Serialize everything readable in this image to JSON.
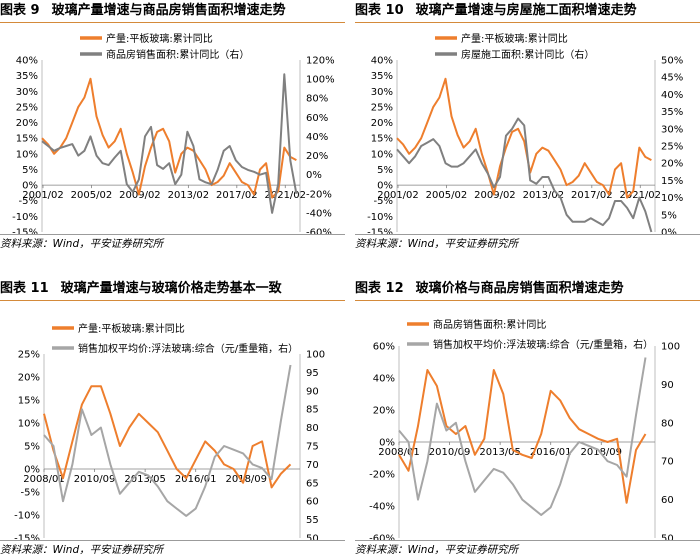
{
  "panels": [
    {
      "number": "图表 9",
      "title": "玻璃产量增速与商品房销售面积增速走势",
      "source": "资料来源：Wind，平安证券研究所"
    },
    {
      "number": "图表 10",
      "title": "玻璃产量增速与房屋施工面积增速走势",
      "source": "资料来源：Wind，平安证券研究所"
    },
    {
      "number": "图表 11",
      "title": "玻璃产量增速与玻璃价格走势基本一致",
      "source": "资料来源：Wind，平安证券研究所"
    },
    {
      "number": "图表 12",
      "title": "玻璃价格与商品房销售面积增速走势",
      "source": "资料来源：Wind，平安证券研究所"
    }
  ],
  "colors": {
    "orange": "#ee7e2d",
    "gray": "#808080",
    "rule": "#d48a3a"
  },
  "chart_data": [
    {
      "type": "line",
      "x_ticks": [
        "2001/02",
        "2005/02",
        "2009/02",
        "2013/02",
        "2017/02",
        "2021/02"
      ],
      "x_range": [
        2001.0,
        2022.3
      ],
      "left_axis": {
        "ticks": [
          "40%",
          "35%",
          "30%",
          "25%",
          "20%",
          "15%",
          "10%",
          "5%",
          "0%",
          "-5%",
          "-10%",
          "-15%"
        ],
        "ylim": [
          -15,
          40
        ]
      },
      "right_axis": {
        "ticks": [
          "120%",
          "100%",
          "80%",
          "60%",
          "40%",
          "20%",
          "0%",
          "-20%",
          "-40%",
          "-60%"
        ],
        "ylim": [
          -60,
          120
        ]
      },
      "series": [
        {
          "name": "产量:平板玻璃:累计同比",
          "axis": "left",
          "color": "#ee7e2d",
          "x": [
            2001.0,
            2001.5,
            2002.0,
            2002.5,
            2003.0,
            2003.5,
            2004.0,
            2004.5,
            2005.0,
            2005.5,
            2006.0,
            2006.5,
            2007.0,
            2007.5,
            2008.0,
            2008.5,
            2009.0,
            2009.5,
            2010.0,
            2010.5,
            2011.0,
            2011.5,
            2012.0,
            2012.5,
            2013.0,
            2013.5,
            2014.0,
            2014.5,
            2015.0,
            2015.5,
            2016.0,
            2016.5,
            2017.0,
            2017.5,
            2018.0,
            2018.5,
            2019.0,
            2019.5,
            2020.0,
            2020.5,
            2021.0,
            2021.5,
            2022.0
          ],
          "y": [
            15,
            13,
            10,
            12,
            15,
            20,
            25,
            28,
            34,
            22,
            16,
            12,
            14,
            18,
            10,
            4,
            -3,
            6,
            12,
            17,
            18,
            14,
            4,
            10,
            12,
            11,
            8,
            5,
            0,
            1,
            3,
            7,
            4,
            1,
            0,
            -3,
            5,
            7,
            -4,
            -2,
            12,
            9,
            8
          ]
        },
        {
          "name": "商品房销售面积:累计同比（右）",
          "axis": "right",
          "color": "#808080",
          "x": [
            2001.0,
            2001.5,
            2002.0,
            2002.5,
            2003.0,
            2003.5,
            2004.0,
            2004.5,
            2005.0,
            2005.5,
            2006.0,
            2006.5,
            2007.0,
            2007.5,
            2008.0,
            2008.5,
            2009.0,
            2009.5,
            2010.0,
            2010.5,
            2011.0,
            2011.5,
            2012.0,
            2012.5,
            2013.0,
            2013.5,
            2014.0,
            2014.5,
            2015.0,
            2015.5,
            2016.0,
            2016.5,
            2017.0,
            2017.5,
            2018.0,
            2018.5,
            2019.0,
            2019.5,
            2020.0,
            2020.5,
            2021.0,
            2021.5,
            2022.0
          ],
          "y": [
            35,
            30,
            25,
            28,
            30,
            32,
            20,
            25,
            40,
            20,
            12,
            10,
            18,
            25,
            -10,
            -18,
            -5,
            40,
            50,
            10,
            6,
            12,
            -10,
            0,
            45,
            30,
            -5,
            -8,
            -10,
            5,
            25,
            30,
            15,
            8,
            5,
            3,
            0,
            2,
            -40,
            -10,
            105,
            15,
            -20
          ]
        }
      ]
    },
    {
      "type": "line",
      "x_ticks": [
        "2001/02",
        "2005/02",
        "2009/02",
        "2013/02",
        "2017/02",
        "2021/02"
      ],
      "x_range": [
        2001.0,
        2022.3
      ],
      "left_axis": {
        "ticks": [
          "40%",
          "35%",
          "30%",
          "25%",
          "20%",
          "15%",
          "10%",
          "5%",
          "0%",
          "-5%",
          "-10%",
          "-15%"
        ],
        "ylim": [
          -15,
          40
        ]
      },
      "right_axis": {
        "ticks": [
          "50%",
          "45%",
          "40%",
          "35%",
          "30%",
          "25%",
          "20%",
          "15%",
          "10%",
          "5%",
          "0%"
        ],
        "ylim": [
          0,
          50
        ]
      },
      "series": [
        {
          "name": "产量:平板玻璃:累计同比",
          "axis": "left",
          "color": "#ee7e2d",
          "x": [
            2001.0,
            2001.5,
            2002.0,
            2002.5,
            2003.0,
            2003.5,
            2004.0,
            2004.5,
            2005.0,
            2005.5,
            2006.0,
            2006.5,
            2007.0,
            2007.5,
            2008.0,
            2008.5,
            2009.0,
            2009.5,
            2010.0,
            2010.5,
            2011.0,
            2011.5,
            2012.0,
            2012.5,
            2013.0,
            2013.5,
            2014.0,
            2014.5,
            2015.0,
            2015.5,
            2016.0,
            2016.5,
            2017.0,
            2017.5,
            2018.0,
            2018.5,
            2019.0,
            2019.5,
            2020.0,
            2020.5,
            2021.0,
            2021.5,
            2022.0
          ],
          "y": [
            15,
            13,
            10,
            12,
            15,
            20,
            25,
            28,
            34,
            22,
            16,
            12,
            14,
            18,
            10,
            4,
            -3,
            6,
            12,
            17,
            18,
            14,
            4,
            10,
            12,
            11,
            8,
            5,
            0,
            1,
            3,
            7,
            4,
            1,
            0,
            -3,
            5,
            7,
            -4,
            -2,
            12,
            9,
            8
          ]
        },
        {
          "name": "房屋施工面积:累计同比（右）",
          "axis": "right",
          "color": "#808080",
          "x": [
            2001.0,
            2001.5,
            2002.0,
            2002.5,
            2003.0,
            2003.5,
            2004.0,
            2004.5,
            2005.0,
            2005.5,
            2006.0,
            2006.5,
            2007.0,
            2007.5,
            2008.0,
            2008.5,
            2009.0,
            2009.5,
            2010.0,
            2010.5,
            2011.0,
            2011.5,
            2012.0,
            2012.5,
            2013.0,
            2013.5,
            2014.0,
            2014.5,
            2015.0,
            2015.5,
            2016.0,
            2016.5,
            2017.0,
            2017.5,
            2018.0,
            2018.5,
            2019.0,
            2019.5,
            2020.0,
            2020.5,
            2021.0,
            2021.5,
            2022.0
          ],
          "y": [
            24,
            22,
            20,
            22,
            25,
            26,
            27,
            25,
            20,
            19,
            19,
            20,
            22,
            24,
            20,
            17,
            13,
            16,
            28,
            30,
            33,
            31,
            15,
            14,
            16,
            16,
            12,
            10,
            5,
            3,
            3,
            3,
            4,
            3,
            2,
            4,
            9,
            9,
            7,
            4,
            10,
            6,
            0
          ]
        }
      ]
    },
    {
      "type": "line",
      "x_ticks": [
        "2008/01",
        "2010/09",
        "2013/05",
        "2016/01",
        "2018/09"
      ],
      "x_range": [
        2008.0,
        2021.5
      ],
      "left_axis": {
        "ticks": [
          "25%",
          "20%",
          "15%",
          "10%",
          "5%",
          "0%",
          "-5%",
          "-10%",
          "-15%"
        ],
        "ylim": [
          -15,
          25
        ]
      },
      "right_axis": {
        "ticks": [
          "100",
          "95",
          "90",
          "85",
          "80",
          "75",
          "70",
          "65",
          "60",
          "55",
          "50"
        ],
        "ylim": [
          50,
          100
        ]
      },
      "series": [
        {
          "name": "产量:平板玻璃:累计同比",
          "axis": "left",
          "color": "#ee7e2d",
          "x": [
            2008.0,
            2008.5,
            2009.0,
            2009.5,
            2010.0,
            2010.5,
            2011.0,
            2011.5,
            2012.0,
            2012.5,
            2013.0,
            2013.5,
            2014.0,
            2014.5,
            2015.0,
            2015.5,
            2016.0,
            2016.5,
            2017.0,
            2017.5,
            2018.0,
            2018.5,
            2019.0,
            2019.5,
            2020.0,
            2020.5,
            2021.0
          ],
          "y": [
            12,
            4,
            -2,
            6,
            14,
            18,
            18,
            12,
            5,
            9,
            12,
            10,
            8,
            4,
            0,
            -2,
            2,
            6,
            4,
            1,
            0,
            -3,
            5,
            6,
            -4,
            -1,
            1
          ]
        },
        {
          "name": "销售加权平均价:浮法玻璃:综合（元/重量箱，右）",
          "axis": "right",
          "color": "#a6a6a6",
          "x": [
            2008.0,
            2008.5,
            2009.0,
            2009.5,
            2010.0,
            2010.5,
            2011.0,
            2011.5,
            2012.0,
            2012.5,
            2013.0,
            2013.5,
            2014.0,
            2014.5,
            2015.0,
            2015.5,
            2016.0,
            2016.5,
            2017.0,
            2017.5,
            2018.0,
            2018.5,
            2019.0,
            2019.5,
            2020.0,
            2020.5,
            2021.0
          ],
          "y": [
            78,
            75,
            60,
            70,
            85,
            78,
            80,
            70,
            62,
            65,
            68,
            67,
            64,
            60,
            58,
            56,
            58,
            64,
            72,
            75,
            74,
            73,
            70,
            69,
            66,
            82,
            97
          ]
        }
      ]
    },
    {
      "type": "line",
      "x_ticks": [
        "2008/01",
        "2010/09",
        "2013/05",
        "2016/01",
        "2018/09"
      ],
      "x_range": [
        2008.0,
        2021.5
      ],
      "left_axis": {
        "ticks": [
          "60%",
          "40%",
          "20%",
          "0%",
          "-20%",
          "-40%",
          "-60%"
        ],
        "ylim": [
          -60,
          60
        ]
      },
      "right_axis": {
        "ticks": [
          "100",
          "90",
          "80",
          "70",
          "60",
          "50"
        ],
        "ylim": [
          50,
          100
        ]
      },
      "series": [
        {
          "name": "商品房销售面积:累计同比",
          "axis": "left",
          "color": "#ee7e2d",
          "x": [
            2008.0,
            2008.5,
            2009.0,
            2009.5,
            2010.0,
            2010.5,
            2011.0,
            2011.5,
            2012.0,
            2012.5,
            2013.0,
            2013.5,
            2014.0,
            2014.5,
            2015.0,
            2015.5,
            2016.0,
            2016.5,
            2017.0,
            2017.5,
            2018.0,
            2018.5,
            2019.0,
            2019.5,
            2020.0,
            2020.5,
            2021.0
          ],
          "y": [
            -8,
            -18,
            10,
            45,
            35,
            10,
            5,
            10,
            -8,
            2,
            45,
            30,
            -5,
            -8,
            -10,
            5,
            32,
            26,
            15,
            8,
            5,
            2,
            0,
            2,
            -38,
            -5,
            5
          ]
        },
        {
          "name": "销售加权平均价:浮法玻璃:综合（元/重量箱，右）",
          "axis": "right",
          "color": "#a6a6a6",
          "x": [
            2008.0,
            2008.5,
            2009.0,
            2009.5,
            2010.0,
            2010.5,
            2011.0,
            2011.5,
            2012.0,
            2012.5,
            2013.0,
            2013.5,
            2014.0,
            2014.5,
            2015.0,
            2015.5,
            2016.0,
            2016.5,
            2017.0,
            2017.5,
            2018.0,
            2018.5,
            2019.0,
            2019.5,
            2020.0,
            2020.5,
            2021.0
          ],
          "y": [
            78,
            75,
            60,
            70,
            85,
            78,
            80,
            70,
            62,
            65,
            68,
            67,
            64,
            60,
            58,
            56,
            58,
            64,
            72,
            75,
            74,
            73,
            70,
            69,
            66,
            82,
            97
          ]
        }
      ]
    }
  ]
}
